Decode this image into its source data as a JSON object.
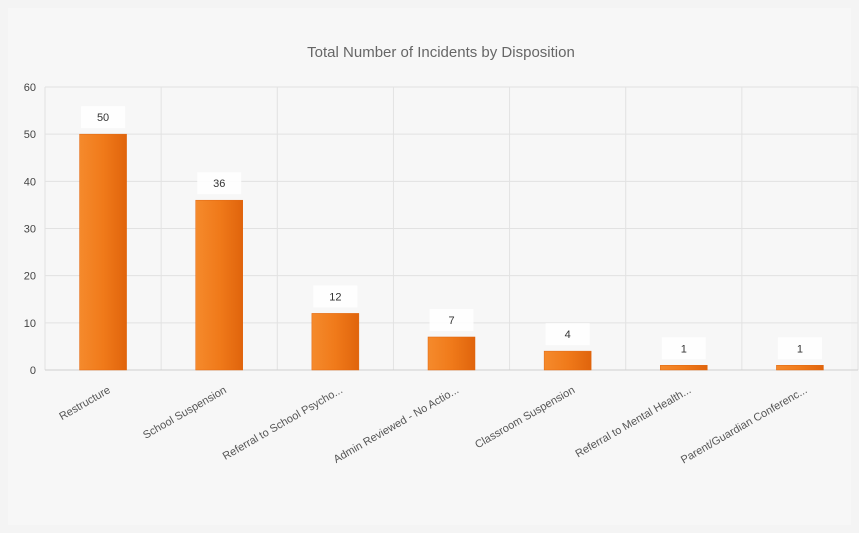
{
  "chart_data": {
    "type": "bar",
    "title": "Total Number of Incidents by Disposition",
    "categories": [
      "Restructure",
      "School Suspension",
      "Referral to School Psycho...",
      "Admin Reviewed - No Actio...",
      "Classroom Suspension",
      "Referral to Mental Health...",
      "Parent/Guardian Conferenc..."
    ],
    "values": [
      50,
      36,
      12,
      7,
      4,
      1,
      1
    ],
    "ylim": [
      0,
      60
    ],
    "yticks": [
      0,
      10,
      20,
      30,
      40,
      50,
      60
    ],
    "xlabel": "",
    "ylabel": "",
    "grid": true,
    "data_labels": true,
    "colors": {
      "bar": "#f07a1a",
      "bar_dark": "#e0640c",
      "grid": "#e2e2e2",
      "axis": "#cfcfcf"
    }
  }
}
